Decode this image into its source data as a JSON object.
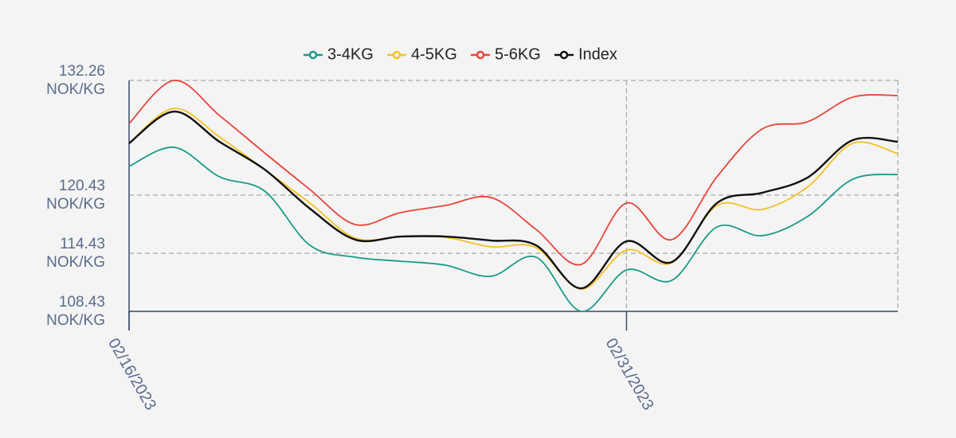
{
  "chart_data": {
    "type": "line",
    "categories": [
      "02/16/2023",
      null,
      null,
      null,
      null,
      null,
      null,
      null,
      null,
      null,
      null,
      "02/31/2023",
      null,
      null,
      null,
      null,
      null,
      null
    ],
    "series": [
      {
        "name": "3-4KG",
        "color": "#1a9a87",
        "values": [
          123.39,
          125.36,
          122.32,
          120.84,
          115.25,
          114.02,
          113.61,
          113.2,
          112.05,
          114.02,
          108.43,
          112.7,
          111.63,
          117.14,
          116.24,
          118.21,
          122.07,
          122.56
        ]
      },
      {
        "name": "4-5KG",
        "color": "#f5c024",
        "values": [
          125.77,
          129.38,
          126.43,
          123.06,
          119.61,
          115.99,
          116.15,
          116.07,
          115.09,
          115.0,
          110.73,
          114.76,
          113.44,
          119.36,
          118.95,
          121.25,
          125.77,
          124.7
        ]
      },
      {
        "name": "5-6KG",
        "color": "#e8443a",
        "values": [
          127.82,
          132.26,
          128.64,
          124.78,
          121.0,
          117.39,
          118.62,
          119.36,
          120.18,
          116.89,
          113.28,
          119.61,
          115.83,
          122.32,
          127.25,
          127.99,
          130.53,
          130.7
        ]
      },
      {
        "name": "Index",
        "color": "#111111",
        "values": [
          125.77,
          129.05,
          125.93,
          123.06,
          119.03,
          115.83,
          116.15,
          116.15,
          115.74,
          115.25,
          110.81,
          115.66,
          113.52,
          119.61,
          120.67,
          122.23,
          126.1,
          125.93
        ]
      }
    ],
    "ylim": [
      108.43,
      132.26
    ],
    "yticks": [
      {
        "value": 108.43,
        "label": "108.43 NOK/KG"
      },
      {
        "value": 114.43,
        "label": "114.43 NOK/KG"
      },
      {
        "value": 120.43,
        "label": "120.43 NOK/KG"
      },
      {
        "value": 132.26,
        "label": "132.26 NOK/KG"
      }
    ],
    "grid": true,
    "legend": "top"
  }
}
